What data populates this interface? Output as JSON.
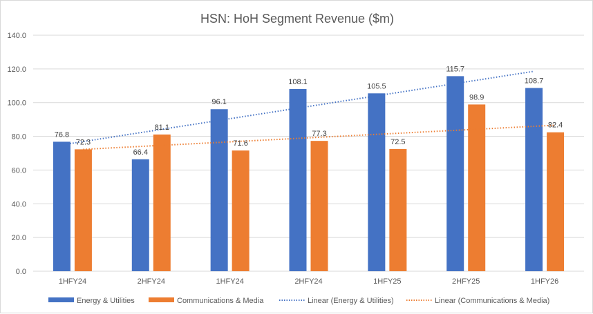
{
  "chart_data": {
    "type": "bar",
    "title": "HSN: HoH Segment Revenue ($m)",
    "categories": [
      "1HFY24",
      "2HFY24",
      "1HFY24",
      "2HFY24",
      "1HFY25",
      "2HFY25",
      "1HFY26"
    ],
    "series": [
      {
        "name": "Energy & Utilities",
        "color": "#4472c4",
        "values": [
          76.8,
          66.4,
          96.1,
          108.1,
          105.5,
          115.7,
          108.7
        ]
      },
      {
        "name": "Communications & Media",
        "color": "#ed7d31",
        "values": [
          72.3,
          81.1,
          71.6,
          77.3,
          72.5,
          98.9,
          82.4
        ]
      }
    ],
    "trendlines": [
      {
        "name": "Linear (Energy & Utilities)",
        "series": 0,
        "color": "#4472c4",
        "style": "dotted"
      },
      {
        "name": "Linear (Communications & Media)",
        "series": 1,
        "color": "#ed7d31",
        "style": "dotted"
      }
    ],
    "ylim": [
      0,
      140
    ],
    "yticks": [
      "0.0",
      "20.0",
      "40.0",
      "60.0",
      "80.0",
      "100.0",
      "120.0",
      "140.0"
    ],
    "grid": true,
    "legend": "bottom",
    "xlabel": "",
    "ylabel": ""
  }
}
